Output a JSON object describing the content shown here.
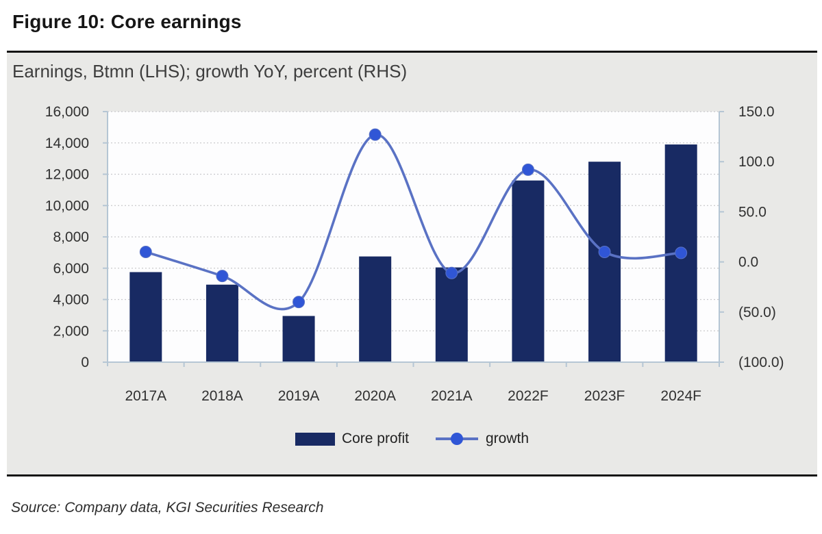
{
  "figure": {
    "title": "Figure 10: Core earnings",
    "subtitle": "Earnings, Btmn (LHS); growth YoY, percent (RHS)",
    "source": "Source: Company data, KGI Securities Research"
  },
  "colors": {
    "bar": "#182a63",
    "line": "#5a72c4",
    "marker": "#3056d6",
    "band_bg": "#e9e9e7",
    "plot_bg": "#fdfdfe",
    "axis": "#b5c6d4",
    "grid": "#c9c9cc",
    "tick_text": "#303030",
    "divider": "#141414"
  },
  "chart_data": {
    "type": "bar",
    "combo": "bar+line dual axis",
    "title": "Figure 10: Core earnings",
    "subtitle": "Earnings, Btmn (LHS); growth YoY, percent (RHS)",
    "categories": [
      "2017A",
      "2018A",
      "2019A",
      "2020A",
      "2021A",
      "2022F",
      "2023F",
      "2024F"
    ],
    "series": [
      {
        "name": "Core profit",
        "type": "bar",
        "axis": "left",
        "unit": "Btmn",
        "values": [
          5750,
          4950,
          2950,
          6750,
          6050,
          11600,
          12800,
          13900
        ]
      },
      {
        "name": "growth",
        "type": "line",
        "axis": "right",
        "unit": "percent YoY",
        "values": [
          10,
          -14,
          -40,
          127,
          -11,
          92,
          10,
          9
        ]
      }
    ],
    "left_axis": {
      "label": "Earnings, Btmn (LHS)",
      "min": 0,
      "max": 16000,
      "tick_step": 2000,
      "tick_labels": [
        "0",
        "2,000",
        "4,000",
        "6,000",
        "8,000",
        "10,000",
        "12,000",
        "14,000",
        "16,000"
      ]
    },
    "right_axis": {
      "label": "growth YoY, percent (RHS)",
      "min": -100,
      "max": 150,
      "tick_step": 50,
      "tick_labels": [
        "(100.0)",
        "(50.0)",
        "0.0",
        "50.0",
        "100.0",
        "150.0"
      ]
    },
    "grid": true,
    "legend_position": "bottom"
  }
}
